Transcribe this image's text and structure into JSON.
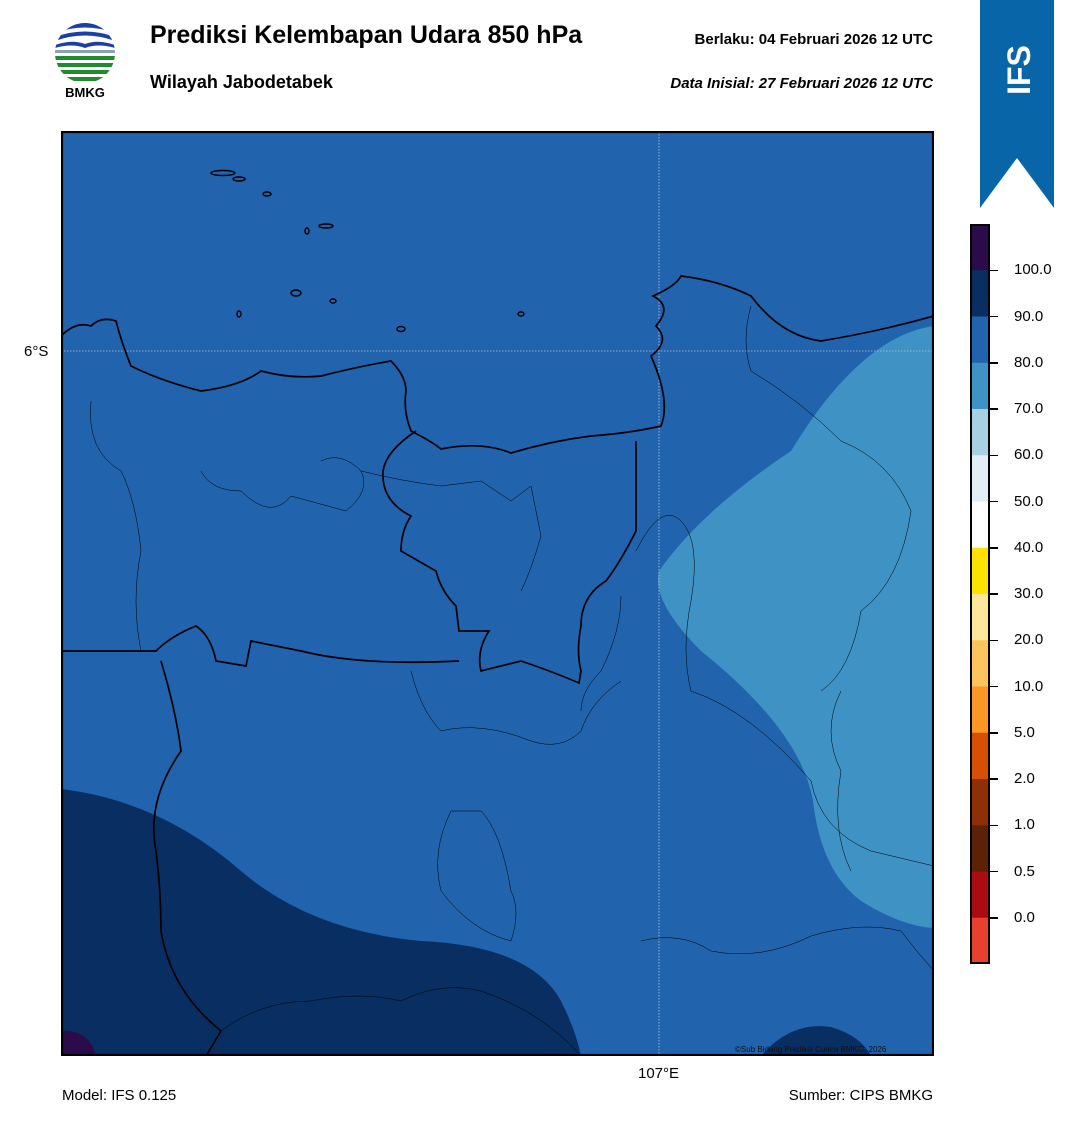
{
  "header": {
    "title": "Prediksi Kelembapan Udara 850 hPa",
    "subtitle": "Wilayah Jabodetabek",
    "valid_time": "Berlaku:  04 Februari 2026 12 UTC",
    "init_time": "Data Inisial:  27 Februari 2026 12 UTC"
  },
  "logo": {
    "text": "BMKG"
  },
  "badge": {
    "text": "IFS",
    "color": "#0866a8"
  },
  "map": {
    "lat_label": "6°S",
    "lon_label": "107°E",
    "copyright": "©Sub Bidang Prediksi Cuaca BMKG, 2026",
    "fill_colors": [
      "#2163ad",
      "#3f92c4",
      "#082e62",
      "#2b0b4a"
    ]
  },
  "colorbar": {
    "labels": [
      "100.0",
      "90.0",
      "80.0",
      "70.0",
      "60.0",
      "50.0",
      "40.0",
      "30.0",
      "20.0",
      "10.0",
      "5.0",
      "2.0",
      "1.0",
      "0.5",
      "0.0"
    ],
    "colors": [
      "#2b0b4a",
      "#082e62",
      "#2163ad",
      "#3f92c4",
      "#a8d0e3",
      "#e2eef6",
      "#ffffff",
      "#fde200",
      "#fde79b",
      "#fdc35c",
      "#fc9624",
      "#d74f07",
      "#8e2f05",
      "#5c2107",
      "#ab0c12",
      "#e8402f"
    ]
  },
  "footer": {
    "model": "Model: IFS 0.125",
    "source": "Sumber: CIPS BMKG"
  }
}
